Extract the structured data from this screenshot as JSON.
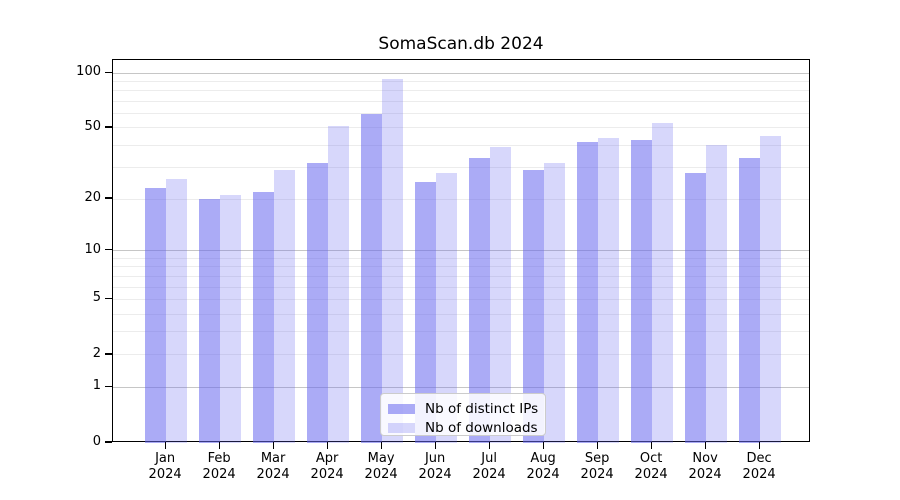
{
  "title": "SomaScan.db 2024",
  "chart_data": {
    "type": "bar",
    "title": "SomaScan.db 2024",
    "categories": [
      "Jan",
      "Feb",
      "Mar",
      "Apr",
      "May",
      "Jun",
      "Jul",
      "Aug",
      "Sep",
      "Oct",
      "Nov",
      "Dec"
    ],
    "year_label": "2024",
    "series": [
      {
        "name": "Nb of distinct IPs",
        "values": [
          23,
          20,
          22,
          32,
          60,
          25,
          34,
          29,
          42,
          43,
          28,
          34
        ],
        "color": "#a9a9f4",
        "fill_rgba": "rgba(102,102,238,0.55)"
      },
      {
        "name": "Nb of downloads",
        "values": [
          26,
          21,
          29,
          51,
          93,
          28,
          39,
          32,
          44,
          53,
          40,
          45
        ],
        "color": "#dadaf9",
        "fill_rgba": "rgba(102,102,238,0.26)"
      }
    ],
    "yscale": "log10(1+y)",
    "ytick_values": [
      100,
      50,
      20,
      10,
      5,
      2,
      1,
      0
    ],
    "major_grid_values": [
      1,
      10,
      100
    ],
    "minor_grid_values": [
      2,
      3,
      4,
      5,
      6,
      7,
      8,
      9,
      20,
      30,
      40,
      50,
      60,
      70,
      80,
      90
    ],
    "ylim": [
      0,
      118
    ],
    "grid": true,
    "legend_position": "bottom-center",
    "xlabel": "",
    "ylabel": ""
  },
  "colors": {
    "background": "#ffffff",
    "frame": "#000000",
    "text": "#000000",
    "major_grid": "#c6c6c6",
    "minor_grid": "#ececec",
    "legend_border": "#cccccc",
    "legend_bg": "rgba(255,255,255,0.85)"
  }
}
